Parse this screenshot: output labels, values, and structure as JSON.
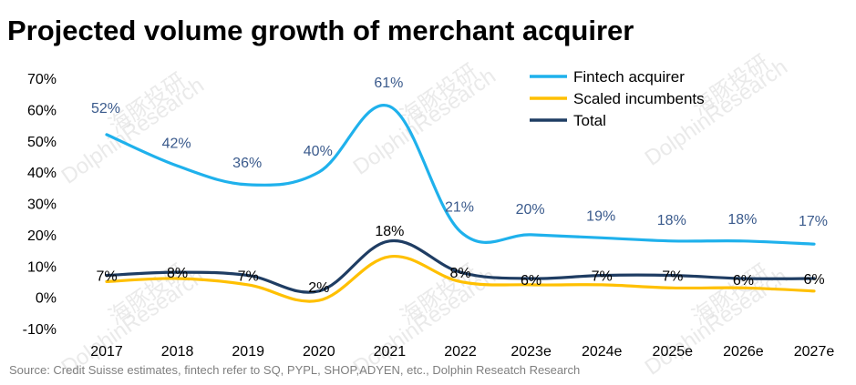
{
  "chart_data": {
    "type": "line",
    "title": "Projected volume growth of merchant acquirer",
    "categories": [
      "2017",
      "2018",
      "2019",
      "2020",
      "2021",
      "2022",
      "2023e",
      "2024e",
      "2025e",
      "2026e",
      "2027e"
    ],
    "ylim": [
      -10,
      70
    ],
    "yticks": [
      "70%",
      "60%",
      "50%",
      "40%",
      "30%",
      "20%",
      "10%",
      "0%",
      "-10%"
    ],
    "ytick_values": [
      70,
      60,
      50,
      40,
      30,
      20,
      10,
      0,
      -10
    ],
    "series": [
      {
        "name": "Fintech acquirer",
        "color": "#1FB1EC",
        "values": [
          52,
          42,
          36,
          40,
          61,
          21,
          20,
          19,
          18,
          18,
          17
        ],
        "labels": [
          "52%",
          "42%",
          "36%",
          "40%",
          "61%",
          "21%",
          "20%",
          "19%",
          "18%",
          "18%",
          "17%"
        ],
        "label_color": "#3a5a8c"
      },
      {
        "name": "Scaled incumbents",
        "color": "#FFC000",
        "values": [
          5,
          6,
          4,
          -1,
          13,
          5,
          4,
          4,
          3,
          3,
          2
        ],
        "labels": [],
        "label_color": "#000000"
      },
      {
        "name": "Total",
        "color": "#1F3D63",
        "values": [
          7,
          8,
          7,
          2,
          18,
          8,
          6,
          7,
          7,
          6,
          6
        ],
        "labels": [
          "7%",
          "8%",
          "7%",
          "2%",
          "18%",
          "8%",
          "6%",
          "7%",
          "7%",
          "6%",
          "6%"
        ],
        "label_color": "#000000"
      }
    ],
    "legend_position": "top-right",
    "source": "Source: Credit Suisse estimates, fintech refer to SQ, PYPL, SHOP,ADYEN, etc., Dolphin Reseatch Research",
    "watermark_text": "DolphinResearch",
    "watermark_cn": "海豚投研"
  }
}
